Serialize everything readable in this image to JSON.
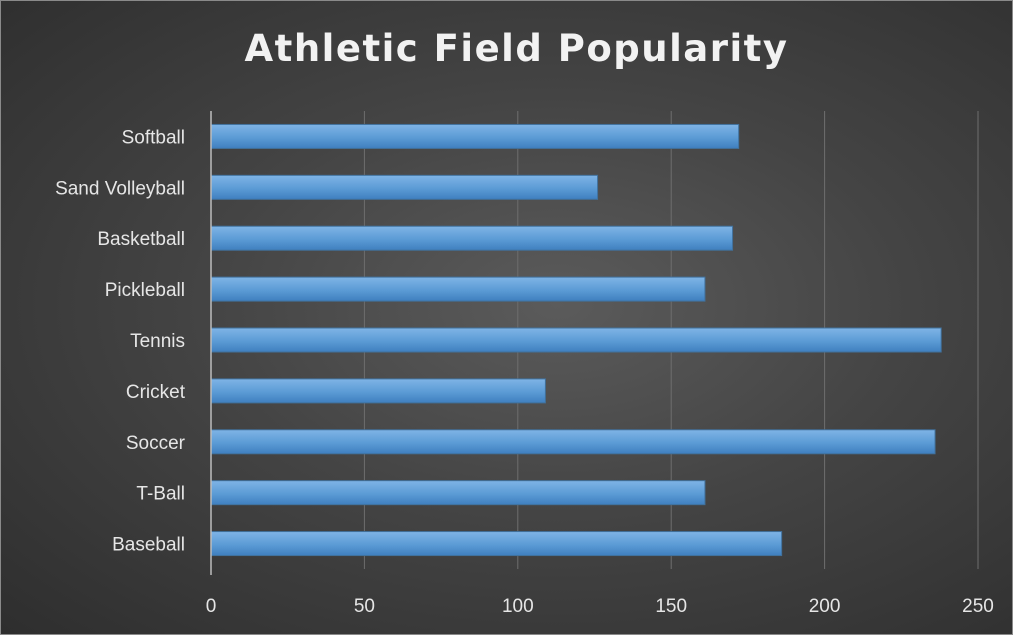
{
  "chart_data": {
    "type": "bar",
    "orientation": "horizontal",
    "title": "Athletic Field Popularity",
    "xlabel": "",
    "ylabel": "",
    "categories": [
      "Softball",
      "Sand Volleyball",
      "Basketball",
      "Pickleball",
      "Tennis",
      "Cricket",
      "Soccer",
      "T-Ball",
      "Baseball"
    ],
    "values": [
      172,
      126,
      170,
      161,
      238,
      109,
      236,
      161,
      186
    ],
    "xlim": [
      0,
      250
    ],
    "xticks": [
      0,
      50,
      100,
      150,
      200,
      250
    ],
    "grid": true,
    "legend": "none",
    "colors": {
      "bar": "#5b9bd5",
      "bar_edge": "#41719c",
      "background": "#404040",
      "text": "#e6e6e6"
    }
  }
}
